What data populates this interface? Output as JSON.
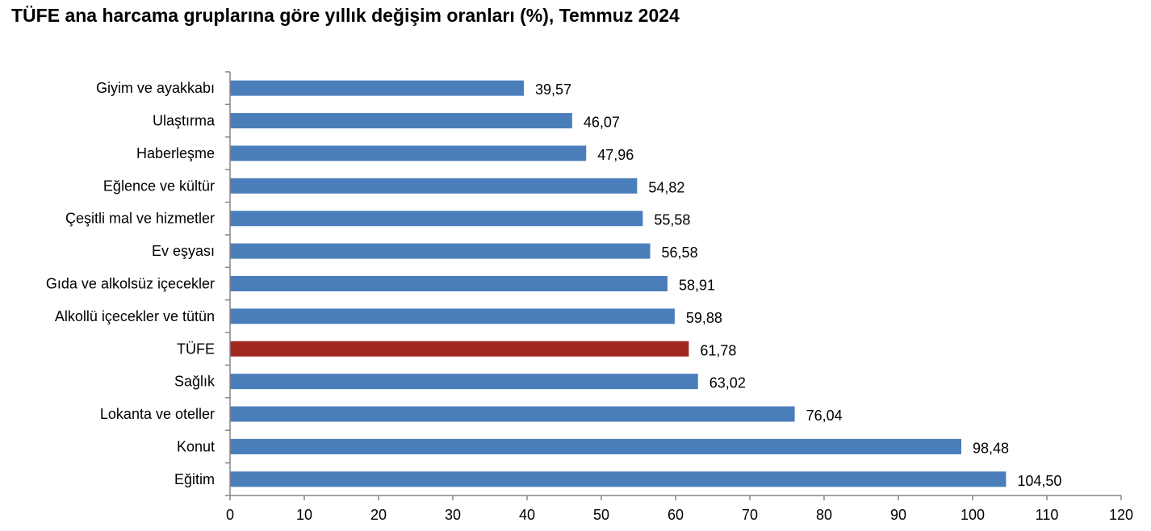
{
  "chart_data": {
    "type": "bar",
    "orientation": "horizontal",
    "title": "TÜFE ana harcama gruplarına göre yıllık değişim oranları (%), Temmuz 2024",
    "categories": [
      "Giyim ve ayakkabı",
      "Ulaştırma",
      "Haberleşme",
      "Eğlence ve kültür",
      "Çeşitli mal ve hizmetler",
      "Ev eşyası",
      "Gıda ve alkolsüz içecekler",
      "Alkollü içecekler ve tütün",
      "TÜFE",
      "Sağlık",
      "Lokanta ve oteller",
      "Konut",
      "Eğitim"
    ],
    "values": [
      39.57,
      46.07,
      47.96,
      54.82,
      55.58,
      56.58,
      58.91,
      59.88,
      61.78,
      63.02,
      76.04,
      98.48,
      104.5
    ],
    "value_labels": [
      "39,57",
      "46,07",
      "47,96",
      "54,82",
      "55,58",
      "56,58",
      "58,91",
      "59,88",
      "61,78",
      "63,02",
      "76,04",
      "98,48",
      "104,50"
    ],
    "xlim": [
      0,
      120
    ],
    "xticks": [
      0,
      10,
      20,
      30,
      40,
      50,
      60,
      70,
      80,
      90,
      100,
      110,
      120
    ],
    "grid": false,
    "legend": "none",
    "colors": {
      "bar": "#4a7ebb",
      "highlight": "#a0281f",
      "axis": "#868686"
    },
    "highlight_category": "TÜFE"
  }
}
